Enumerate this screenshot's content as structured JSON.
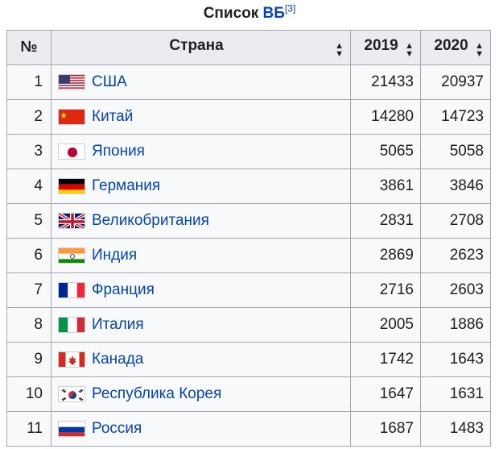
{
  "caption": {
    "text": "Список ",
    "link": "ВБ",
    "ref": "[3]"
  },
  "columns": {
    "rank": "№",
    "country": "Страна",
    "y2019": "2019",
    "y2020": "2020"
  },
  "rows": [
    {
      "rank": "1",
      "country": "США",
      "flag": "us-flag-icon",
      "v2019": "21433",
      "v2020": "20937"
    },
    {
      "rank": "2",
      "country": "Китай",
      "flag": "china-flag-icon",
      "v2019": "14280",
      "v2020": "14723"
    },
    {
      "rank": "3",
      "country": "Япония",
      "flag": "japan-flag-icon",
      "v2019": "5065",
      "v2020": "5058"
    },
    {
      "rank": "4",
      "country": "Германия",
      "flag": "germany-flag-icon",
      "v2019": "3861",
      "v2020": "3846"
    },
    {
      "rank": "5",
      "country": "Великобритания",
      "flag": "uk-flag-icon",
      "v2019": "2831",
      "v2020": "2708"
    },
    {
      "rank": "6",
      "country": "Индия",
      "flag": "india-flag-icon",
      "v2019": "2869",
      "v2020": "2623"
    },
    {
      "rank": "7",
      "country": "Франция",
      "flag": "france-flag-icon",
      "v2019": "2716",
      "v2020": "2603"
    },
    {
      "rank": "8",
      "country": "Италия",
      "flag": "italy-flag-icon",
      "v2019": "2005",
      "v2020": "1886"
    },
    {
      "rank": "9",
      "country": "Канада",
      "flag": "canada-flag-icon",
      "v2019": "1742",
      "v2020": "1643"
    },
    {
      "rank": "10",
      "country": "Республика Корея",
      "flag": "south-korea-flag-icon",
      "v2019": "1647",
      "v2020": "1631"
    },
    {
      "rank": "11",
      "country": "Россия",
      "flag": "russia-flag-icon",
      "v2019": "1687",
      "v2020": "1483"
    }
  ]
}
